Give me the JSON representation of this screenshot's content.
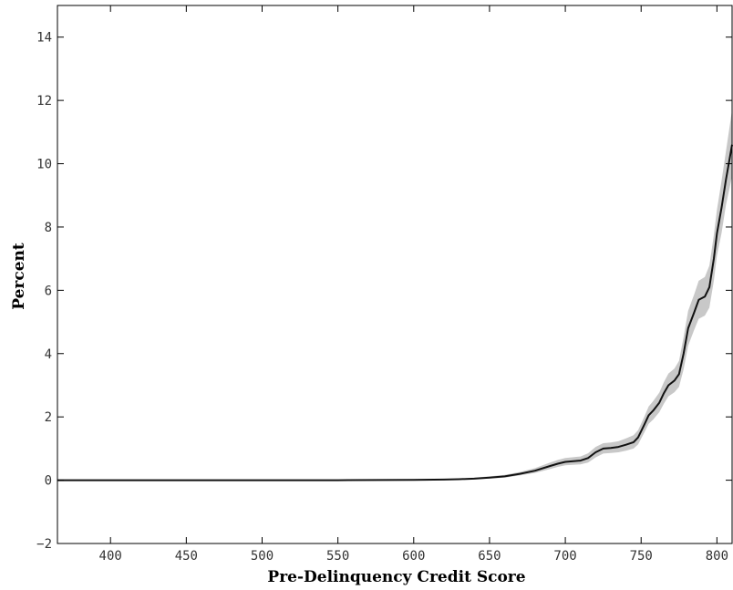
{
  "chart_data": {
    "type": "line",
    "title": "",
    "xlabel": "Pre-Delinquency Credit Score",
    "ylabel": "Percent",
    "xlim": [
      365,
      810
    ],
    "ylim": [
      -2,
      15
    ],
    "xticks": [
      400,
      450,
      500,
      550,
      600,
      650,
      700,
      750,
      800
    ],
    "yticks": [
      -2,
      0,
      2,
      4,
      6,
      8,
      10,
      12,
      14
    ],
    "grid": false,
    "legend": "none",
    "colors": {
      "line": "#111111",
      "band": "#c8c8c8",
      "axes": "#000000"
    },
    "series": [
      {
        "x": [
          365,
          400,
          450,
          500,
          550,
          600,
          620,
          630,
          640,
          650,
          660,
          670,
          680,
          690,
          695,
          700,
          710,
          715,
          720,
          725,
          730,
          735,
          740,
          745,
          748,
          752,
          755,
          758,
          762,
          765,
          768,
          772,
          775,
          778,
          781,
          785,
          788,
          792,
          795,
          798,
          800,
          803,
          806,
          810
        ],
        "y": [
          0,
          0,
          0,
          0,
          0,
          0.01,
          0.02,
          0.03,
          0.05,
          0.08,
          0.12,
          0.2,
          0.3,
          0.45,
          0.52,
          0.58,
          0.62,
          0.7,
          0.88,
          1.0,
          1.02,
          1.05,
          1.12,
          1.2,
          1.35,
          1.75,
          2.05,
          2.2,
          2.45,
          2.75,
          3.0,
          3.15,
          3.35,
          4.0,
          4.8,
          5.3,
          5.7,
          5.8,
          6.1,
          7.0,
          7.8,
          8.6,
          9.5,
          10.6
        ],
        "lower": [
          0,
          0,
          0,
          0,
          0,
          0,
          0.01,
          0.02,
          0.03,
          0.05,
          0.08,
          0.15,
          0.23,
          0.35,
          0.42,
          0.47,
          0.5,
          0.56,
          0.72,
          0.84,
          0.86,
          0.88,
          0.93,
          1.0,
          1.13,
          1.5,
          1.78,
          1.92,
          2.15,
          2.42,
          2.65,
          2.78,
          2.95,
          3.5,
          4.25,
          4.75,
          5.1,
          5.2,
          5.45,
          6.3,
          7.1,
          7.8,
          8.7,
          9.6
        ],
        "upper": [
          0,
          0,
          0,
          0,
          0,
          0.03,
          0.04,
          0.05,
          0.08,
          0.12,
          0.17,
          0.26,
          0.38,
          0.56,
          0.64,
          0.7,
          0.75,
          0.85,
          1.05,
          1.17,
          1.19,
          1.23,
          1.32,
          1.42,
          1.58,
          2.0,
          2.33,
          2.5,
          2.77,
          3.1,
          3.37,
          3.53,
          3.77,
          4.52,
          5.35,
          5.87,
          6.3,
          6.42,
          6.78,
          7.75,
          8.55,
          9.45,
          10.4,
          11.7
        ]
      }
    ]
  }
}
